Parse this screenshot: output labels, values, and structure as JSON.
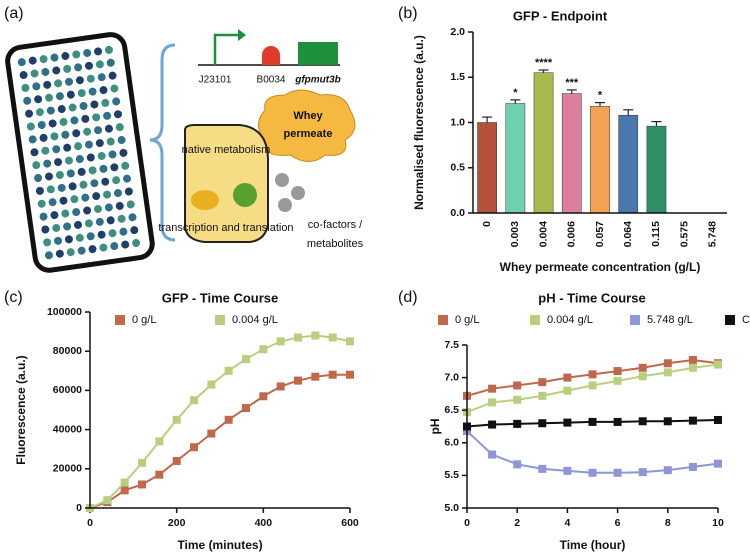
{
  "panel_labels": [
    "(a)",
    "(b)",
    "(c)",
    "(d)"
  ],
  "diagram": {
    "parts": [
      "J23101",
      "B0034",
      "gfpmut3b"
    ],
    "whey": [
      "Whey",
      "permeate"
    ],
    "cell": [
      "native metabolism",
      "transcription and translation"
    ],
    "cofactors": [
      "co-factors /",
      "metabolites"
    ]
  },
  "chart_data": [
    {
      "type": "bar",
      "title": "GFP - Endpoint",
      "x_label": "Whey permeate concentration (g/L)",
      "y_label": "Normalised fluorescence (a.u.)",
      "categories": [
        "0",
        "0.003",
        "0.004",
        "0.006",
        "0.057",
        "0.064",
        "0.115",
        "0.575",
        "5.748"
      ],
      "values": [
        1.0,
        1.21,
        1.55,
        1.32,
        1.18,
        1.08,
        0.96,
        null,
        null
      ],
      "errors": [
        0.06,
        0.04,
        0.03,
        0.04,
        0.04,
        0.06,
        0.05,
        null,
        null
      ],
      "significance": [
        null,
        "*",
        "****",
        "***",
        "*",
        null,
        null,
        null,
        null
      ],
      "colors": [
        "#b5523b",
        "#6fd0b0",
        "#a9ba4c",
        "#db7e9f",
        "#f2a252",
        "#4a78ad",
        "#2f8f6a",
        null,
        null
      ],
      "ylim": [
        0,
        2
      ],
      "yticks": [
        {
          "value": 0,
          "label": "0.0"
        },
        {
          "value": 0.5,
          "label": "0.5"
        },
        {
          "value": 1,
          "label": "1.0"
        },
        {
          "value": 1.5,
          "label": "1.5"
        },
        {
          "value": 2,
          "label": "2.0"
        }
      ]
    },
    {
      "type": "line",
      "title": "GFP - Time Course",
      "x_label": "Time (minutes)",
      "y_label": "Fluorescence (a.u.)",
      "x": [
        0,
        40,
        80,
        120,
        160,
        200,
        240,
        280,
        320,
        360,
        400,
        440,
        480,
        520,
        560,
        600
      ],
      "series": [
        {
          "name": "0 g/L",
          "color": "#c0684a",
          "values": [
            0,
            3000,
            9000,
            12000,
            17000,
            24000,
            31000,
            38000,
            45000,
            51000,
            57000,
            62000,
            65000,
            67000,
            68000,
            68000
          ]
        },
        {
          "name": "0.004 g/L",
          "color": "#b8d07e",
          "values": [
            0,
            4000,
            13000,
            23000,
            34000,
            45000,
            55000,
            63000,
            70000,
            76000,
            81000,
            85000,
            87000,
            88000,
            87000,
            85000
          ]
        }
      ],
      "xlim": [
        0,
        600
      ],
      "xticks": [
        0,
        200,
        400,
        600
      ],
      "ylim": [
        0,
        100000
      ],
      "yticks": [
        0,
        20000,
        40000,
        60000,
        80000,
        100000
      ]
    },
    {
      "type": "line",
      "title": "pH - Time Course",
      "x_label": "Time (hour)",
      "y_label": "pH",
      "x": [
        0,
        1,
        2,
        3,
        4,
        5,
        6,
        7,
        8,
        9,
        10
      ],
      "series": [
        {
          "name": "0 g/L",
          "color": "#c0684a",
          "values": [
            6.72,
            6.83,
            6.88,
            6.93,
            7.0,
            7.05,
            7.1,
            7.15,
            7.22,
            7.27,
            7.22
          ]
        },
        {
          "name": "0.004 g/L",
          "color": "#b8d07e",
          "values": [
            6.47,
            6.62,
            6.66,
            6.72,
            6.8,
            6.88,
            6.95,
            7.02,
            7.08,
            7.15,
            7.2
          ]
        },
        {
          "name": "5.748 g/L",
          "color": "#8e96d8",
          "values": [
            6.18,
            5.82,
            5.67,
            5.6,
            5.57,
            5.54,
            5.54,
            5.55,
            5.58,
            5.63,
            5.68
          ]
        },
        {
          "name": "Control",
          "color": "#111111",
          "values": [
            6.25,
            6.28,
            6.29,
            6.3,
            6.31,
            6.32,
            6.32,
            6.33,
            6.33,
            6.34,
            6.35
          ]
        }
      ],
      "xlim": [
        0,
        10
      ],
      "xticks": [
        0,
        2,
        4,
        6,
        8,
        10
      ],
      "ylim": [
        5,
        7.5
      ],
      "yticks": [
        {
          "value": 5,
          "label": "5.0"
        },
        {
          "value": 5.5,
          "label": "5.5"
        },
        {
          "value": 6,
          "label": "6.0"
        },
        {
          "value": 6.5,
          "label": "6.5"
        },
        {
          "value": 7,
          "label": "7.0"
        },
        {
          "value": 7.5,
          "label": "7.5"
        }
      ]
    }
  ]
}
